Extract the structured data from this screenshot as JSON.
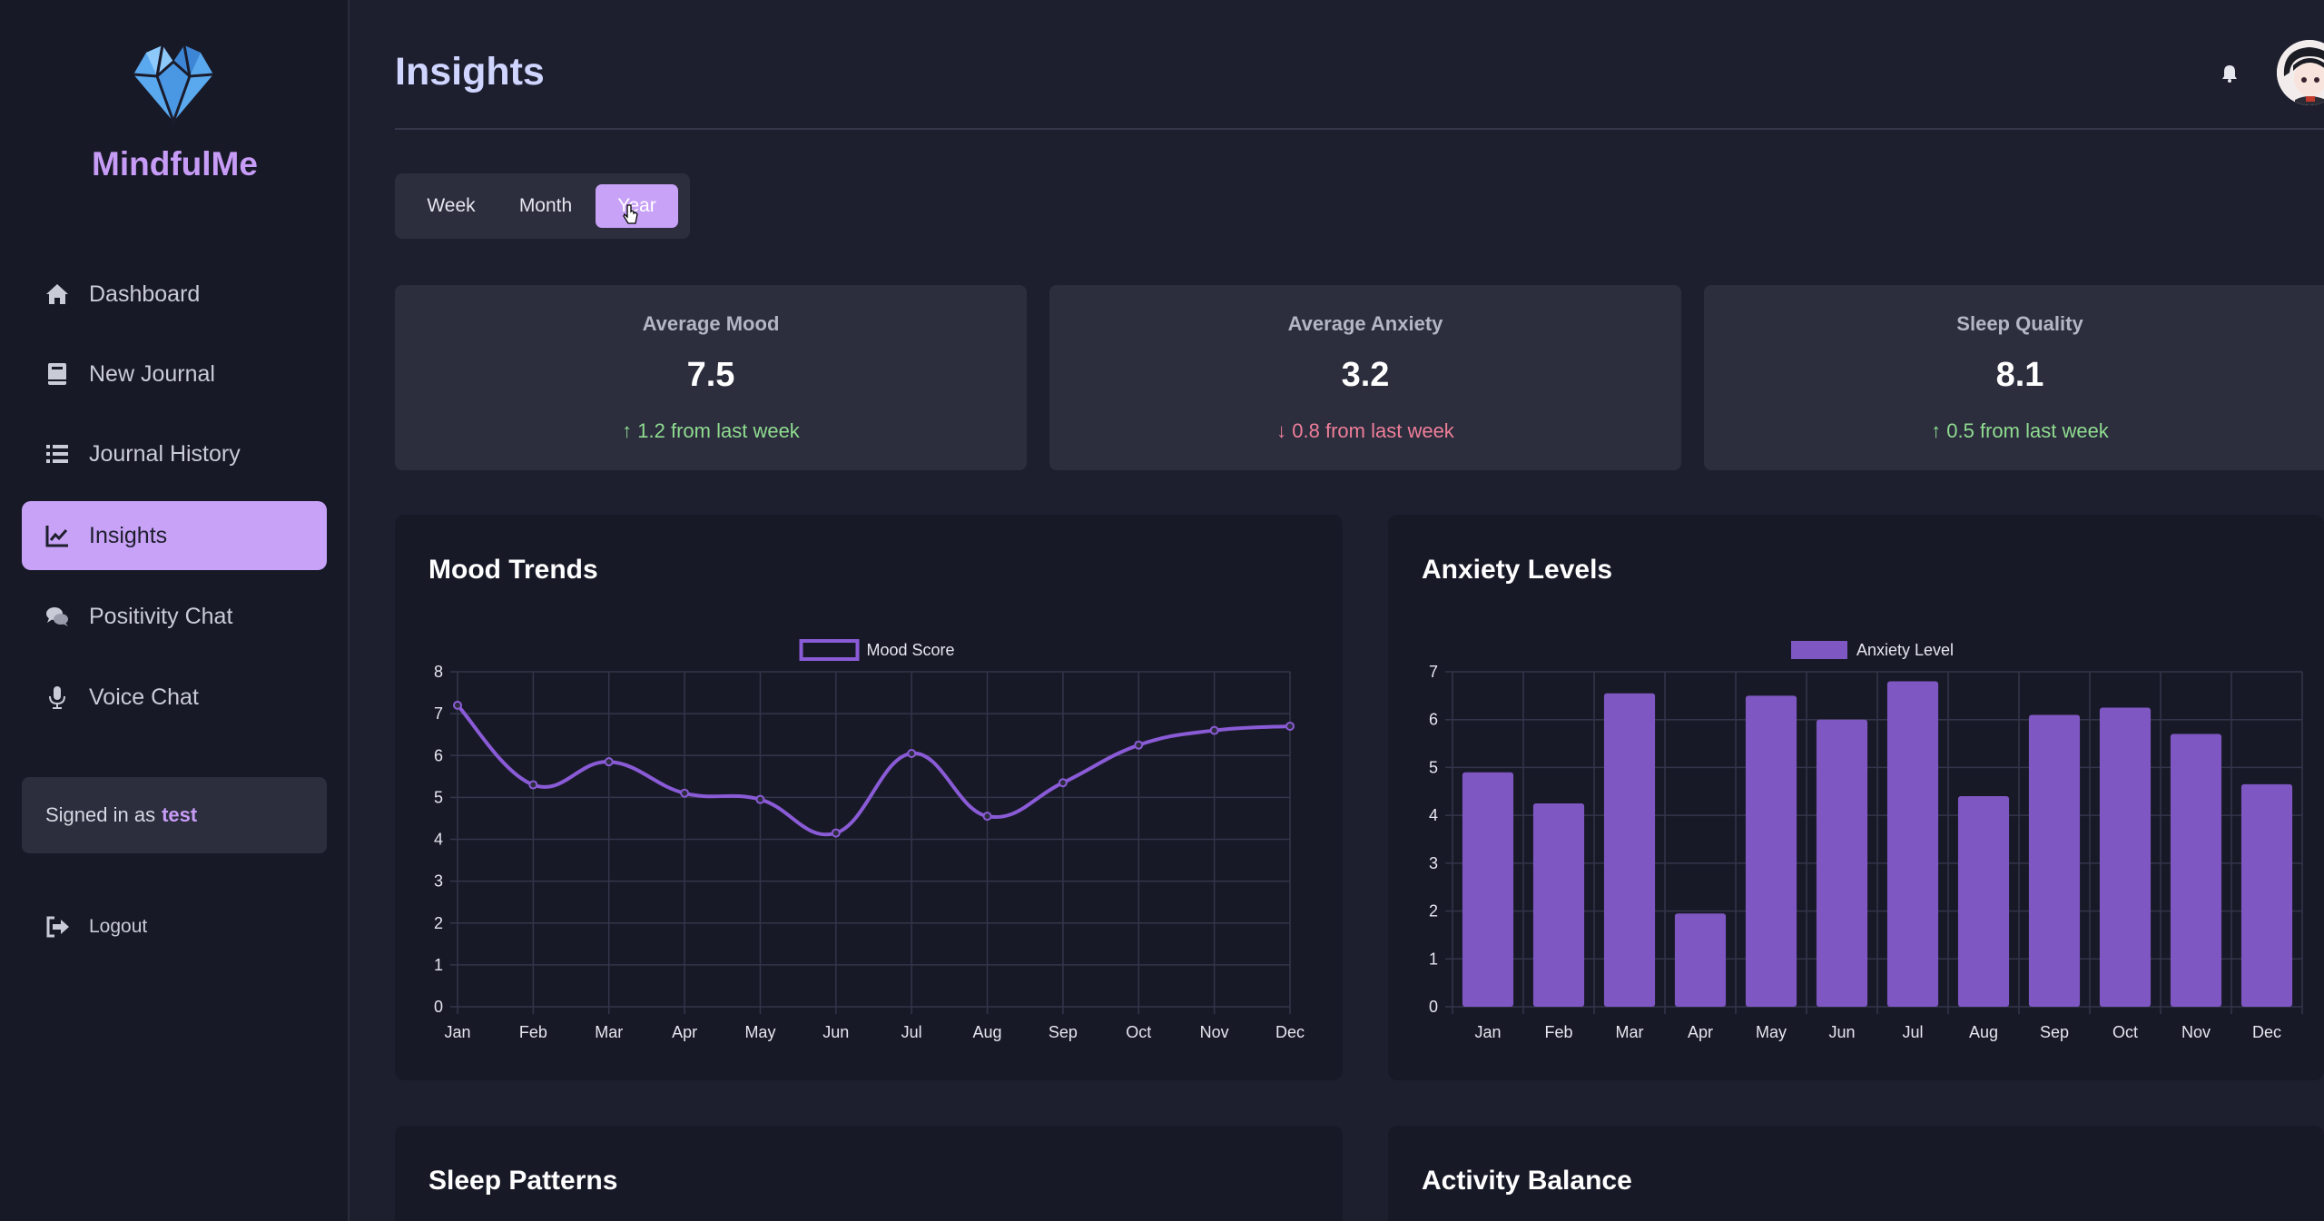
{
  "sidebar": {
    "brand": "MindfulMe",
    "items": [
      {
        "label": "Dashboard",
        "icon": "home-icon"
      },
      {
        "label": "New Journal",
        "icon": "book-icon"
      },
      {
        "label": "Journal History",
        "icon": "list-icon"
      },
      {
        "label": "Insights",
        "icon": "chart-line-icon",
        "active": true
      },
      {
        "label": "Positivity Chat",
        "icon": "comments-icon"
      },
      {
        "label": "Voice Chat",
        "icon": "microphone-icon"
      }
    ],
    "signed_in_prefix": "Signed in as",
    "username": "test",
    "logout_label": "Logout"
  },
  "header": {
    "title": "Insights"
  },
  "range": {
    "options": [
      "Week",
      "Month",
      "Year"
    ],
    "selected": "Year"
  },
  "stats": [
    {
      "title": "Average Mood",
      "value": "7.5",
      "change": "↑ 1.2 from last week",
      "trend": "up"
    },
    {
      "title": "Average Anxiety",
      "value": "3.2",
      "change": "↓ 0.8 from last week",
      "trend": "down"
    },
    {
      "title": "Sleep Quality",
      "value": "8.1",
      "change": "↑ 0.5 from last week",
      "trend": "up"
    }
  ],
  "cards": {
    "mood_title": "Mood Trends",
    "anxiety_title": "Anxiety Levels",
    "sleep_title": "Sleep Patterns",
    "activity_title": "Activity Balance"
  },
  "colors": {
    "accent": "#c8a2f7",
    "series": "#8a5bd6",
    "bar": "#7e57c2"
  },
  "chart_data": [
    {
      "type": "line",
      "title": "Mood Trends",
      "categories": [
        "Jan",
        "Feb",
        "Mar",
        "Apr",
        "May",
        "Jun",
        "Jul",
        "Aug",
        "Sep",
        "Oct",
        "Nov",
        "Dec"
      ],
      "series": [
        {
          "name": "Mood Score",
          "values": [
            7.2,
            5.3,
            5.85,
            5.1,
            4.95,
            4.15,
            6.05,
            4.55,
            5.35,
            6.25,
            6.6,
            6.7
          ]
        }
      ],
      "ylim": [
        0,
        8
      ],
      "yticks": [
        0,
        1,
        2,
        3,
        4,
        5,
        6,
        7,
        8
      ],
      "grid": true,
      "legend": "top-center"
    },
    {
      "type": "bar",
      "title": "Anxiety Levels",
      "categories": [
        "Jan",
        "Feb",
        "Mar",
        "Apr",
        "May",
        "Jun",
        "Jul",
        "Aug",
        "Sep",
        "Oct",
        "Nov",
        "Dec"
      ],
      "series": [
        {
          "name": "Anxiety Level",
          "values": [
            4.9,
            4.25,
            6.55,
            1.95,
            6.5,
            6.0,
            6.8,
            4.4,
            6.1,
            6.25,
            5.7,
            4.65
          ]
        }
      ],
      "ylim": [
        0,
        7
      ],
      "yticks": [
        0,
        1,
        2,
        3,
        4,
        5,
        6,
        7
      ],
      "grid": true,
      "legend": "top-center"
    }
  ]
}
